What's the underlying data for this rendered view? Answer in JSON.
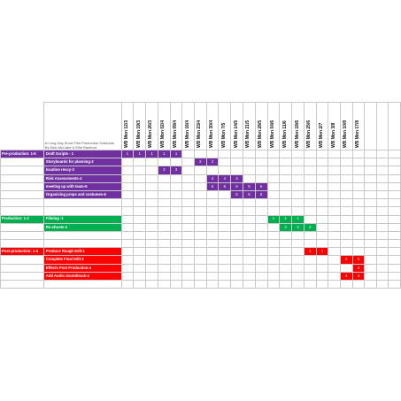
{
  "title": "A Long Day Short Film Production Schedule",
  "byline": "By Nick McCabe & Ellie Rainford",
  "colors": {
    "purple": "#7030a0",
    "green": "#00b050",
    "red": "#ff0000",
    "grid": "#c8c8c8"
  },
  "weeks": [
    "WB Mon 12/3",
    "WB Mon 19/3",
    "WB Mon 26/3",
    "WB Mon 02/4",
    "WB Mon 09/4",
    "WB Mon 16/4",
    "WB Mon 23/4",
    "WB Mon 30/4",
    "WB Mon 7/5",
    "WB Mon 14/5",
    "WB Mon 21/5",
    "WB Mon 28/5",
    "WB Mon 04/6",
    "WB Mon 11/6",
    "WB Mon 18/6",
    "WB Mon 25/6",
    "WB Mon 2/7",
    "WB Mon 3/8",
    "WB Mon 10/8",
    "WB Mon 17/8"
  ],
  "phases": [
    {
      "name": "Pre-production: 1-6",
      "color": "purple",
      "tasks": [
        {
          "name": "Draft Scripts - 1",
          "cells": {
            "0": "1",
            "1": "1",
            "2": "1",
            "3": "1",
            "4": "1"
          }
        },
        {
          "name": "Storyboards for planning-2",
          "cells": {
            "6": "2",
            "7": "2"
          }
        },
        {
          "name": "location reccy-3",
          "cells": {
            "3": "3",
            "4": "3"
          }
        },
        {
          "name": "Risk Assessments-4",
          "cells": {
            "7": "4",
            "8": "4",
            "9": "4"
          }
        },
        {
          "name": "meeting up with team-5",
          "cells": {
            "7": "5",
            "8": "5",
            "9": "5",
            "10": "5",
            "11": "5"
          }
        },
        {
          "name": "Organising props and costumes-6",
          "cells": {
            "9": "6",
            "10": "6",
            "11": "6"
          }
        }
      ]
    },
    {
      "name": "Production: 1-2",
      "color": "green",
      "tasks": [
        {
          "name": "Filming -1",
          "cells": {
            "12": "1",
            "13": "1",
            "14": "1"
          }
        },
        {
          "name": "Re-shoots-2",
          "cells": {
            "13": "2",
            "14": "2",
            "15": "2"
          }
        }
      ]
    },
    {
      "name": "Post-production: 1-4",
      "color": "red",
      "tasks": [
        {
          "name": "Produce Rough Edit-1",
          "cells": {
            "15": "1",
            "16": "1"
          }
        },
        {
          "name": "Complete Final Edit-2",
          "cells": {
            "18": "2",
            "19": "2"
          }
        },
        {
          "name": "Effects Post Production-3",
          "cells": {
            "19": "3"
          }
        },
        {
          "name": "Add Audio Soundtrack-4",
          "cells": {
            "18": "4",
            "19": "4"
          }
        }
      ]
    }
  ]
}
